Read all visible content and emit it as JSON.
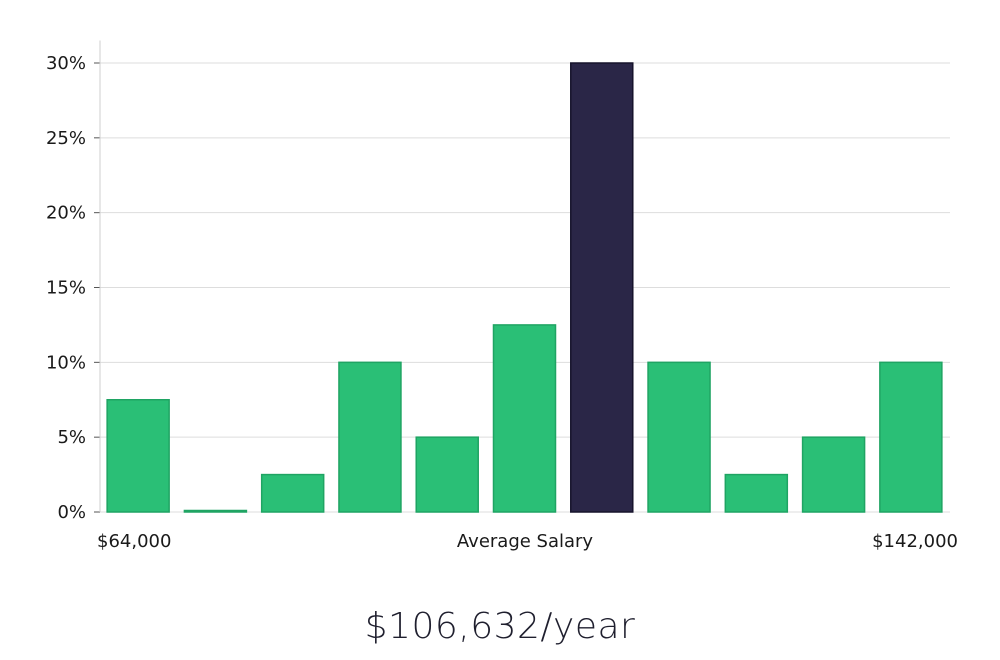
{
  "chart_data": {
    "type": "bar",
    "x_min_label": "$64,000",
    "x_max_label": "$142,000",
    "xlabel": "Average Salary",
    "ylim": [
      0,
      31.5
    ],
    "yticks": [
      0,
      5,
      10,
      15,
      20,
      25,
      30
    ],
    "ytick_labels": [
      "0%",
      "5%",
      "10%",
      "15%",
      "20%",
      "25%",
      "30%"
    ],
    "grid": true,
    "values": [
      7.5,
      0,
      2.5,
      10,
      5,
      12.5,
      30,
      10,
      2.5,
      5,
      10
    ],
    "highlight_index": 6,
    "colors": {
      "bar": "#2abf76",
      "bar_edge": "#1fa463",
      "highlight": "#2a2647",
      "highlight_edge": "#16132c",
      "grid": "#dddddd",
      "axis": "#cfcfcf"
    }
  },
  "salary_display": "$106,632/year"
}
